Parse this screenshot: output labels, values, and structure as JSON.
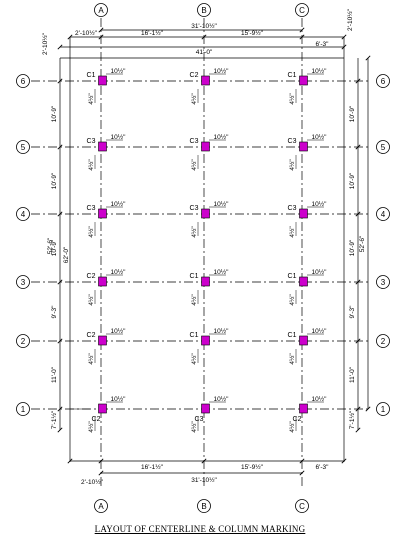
{
  "title": "LAYOUT OF CENTERLINE & COLUMN MARKING",
  "grid_cols": [
    "A",
    "B",
    "C"
  ],
  "grid_rows": [
    "6",
    "5",
    "4",
    "3",
    "2",
    "1"
  ],
  "top_dims": {
    "overall_outer": "41'-0\"",
    "overall_inner": "31'-10½\"",
    "left_offset": "2'-10½\"",
    "spans": [
      "16'-1½\"",
      "15'-9½\""
    ],
    "right_offset": "6'-3\""
  },
  "bottom_dims": {
    "spans": [
      "16'-1½\"",
      "15'-9½\""
    ],
    "right_offset": "6'-3\"",
    "left_offset": "2'-10½\"",
    "overall_inner": "31'-10½\""
  },
  "right_top_offset": "2'-10½\"",
  "left_dims": {
    "spans": [
      "10'-9\"",
      "10'-9\"",
      "10'-9\"",
      "9'-3\"",
      "11'-0\""
    ],
    "bottom_offset": "7'-1½\"",
    "overall_a": "52'-6\"",
    "overall_b": "62'-0\""
  },
  "right_dims": {
    "spans": [
      "10'-9\"",
      "10'-9\"",
      "10'-9\"",
      "9'-3\"",
      "11'-0\""
    ],
    "bottom_offset": "7'-1½\"",
    "overall": "52'-6\""
  },
  "column_labels": [
    [
      "C1",
      "C2",
      "C1"
    ],
    [
      "C3",
      "C3",
      "C3"
    ],
    [
      "C3",
      "C3",
      "C3"
    ],
    [
      "C2",
      "C1",
      "C1"
    ],
    [
      "C2",
      "C1",
      "C1"
    ],
    [
      "C2",
      "C3",
      "C2"
    ]
  ],
  "col_dim_h": "10½\"",
  "col_dim_v": "4½\"",
  "colors": {
    "line": "#000000",
    "column_fill": "#cc00cc"
  }
}
